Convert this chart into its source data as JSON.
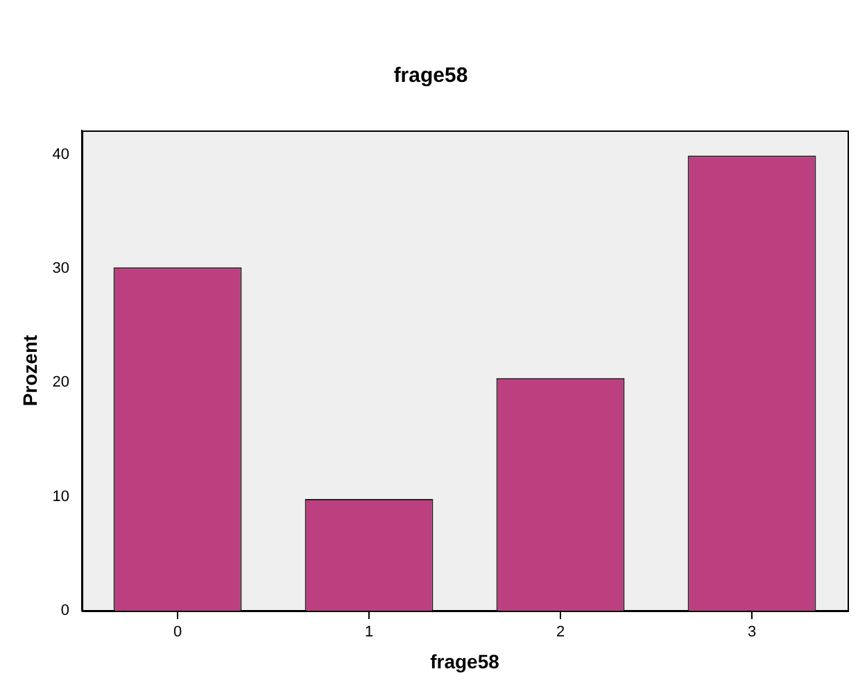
{
  "chart_data": {
    "type": "bar",
    "title": "frage58",
    "xlabel": "frage58",
    "ylabel": "Prozent",
    "categories": [
      "0",
      "1",
      "2",
      "3"
    ],
    "values": [
      30.1,
      9.8,
      20.4,
      39.9
    ],
    "color": "#bc3f7f",
    "ylim": [
      0,
      42.1
    ],
    "yticks": [
      0,
      10,
      20,
      30,
      40
    ],
    "grid": false,
    "legend": false
  }
}
